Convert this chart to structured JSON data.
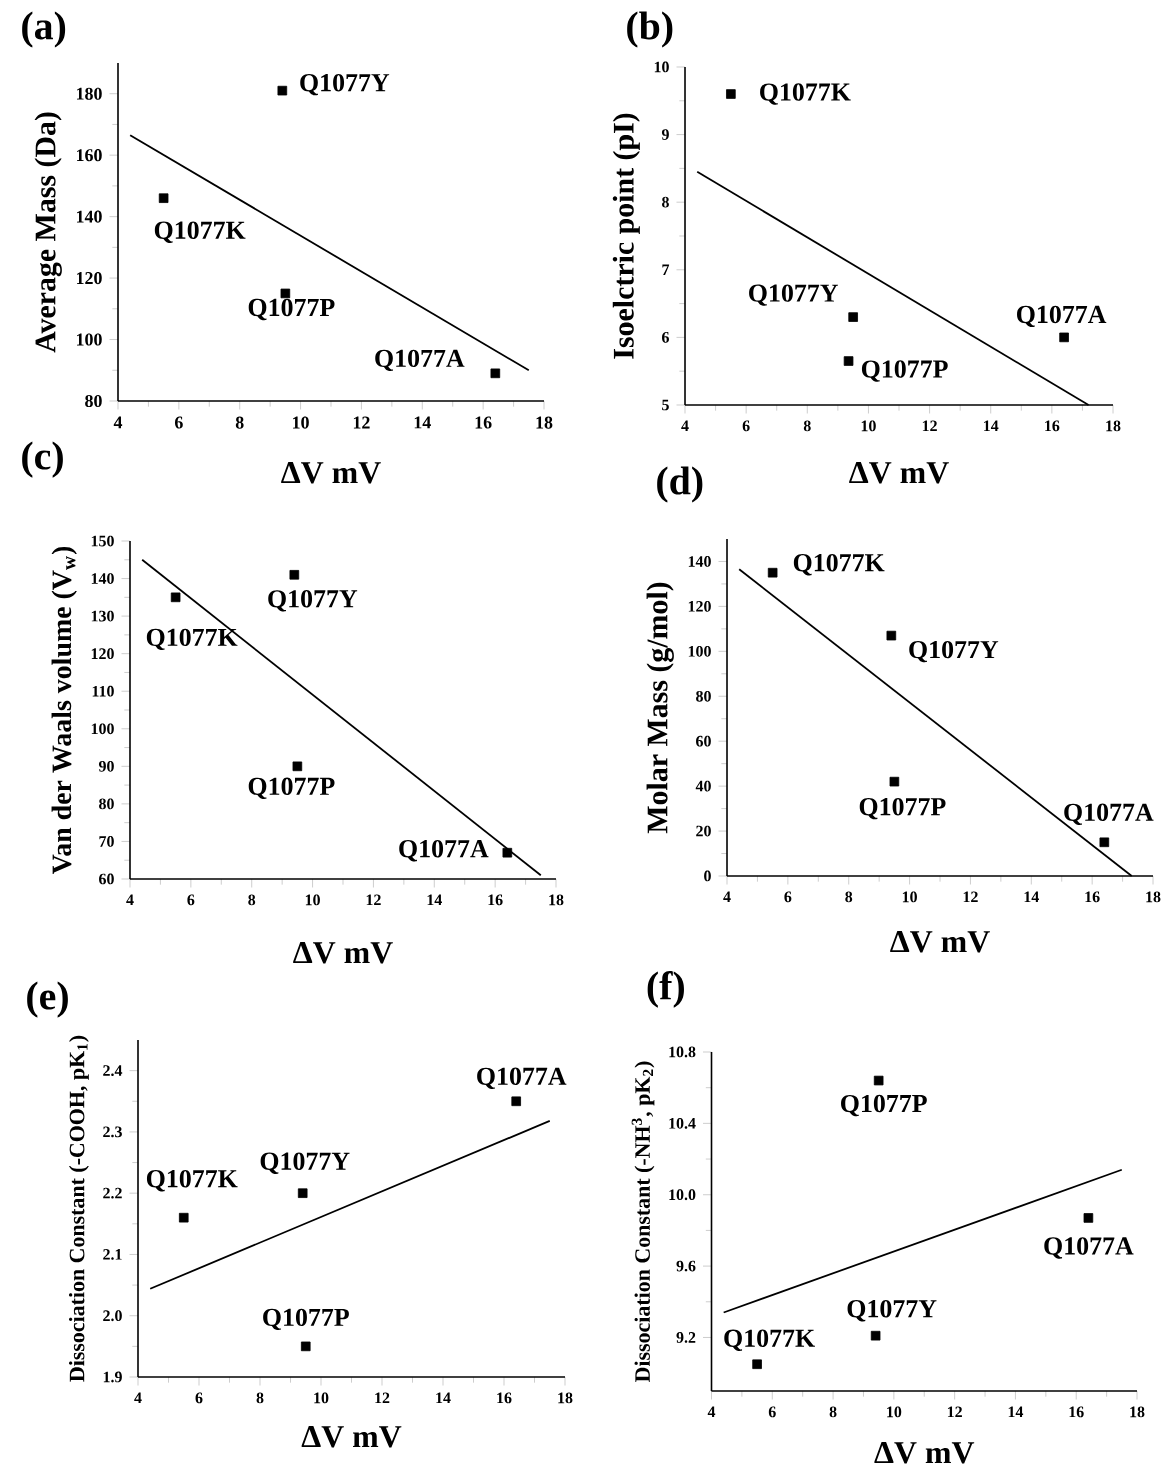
{
  "chart_data": [
    {
      "type": "scatter",
      "title": "(a)",
      "xlabel": "ΔV mV",
      "ylabel": "Average Mass (Da)",
      "xlim": [
        4,
        18
      ],
      "xticks": [
        4,
        6,
        8,
        10,
        12,
        14,
        16,
        18
      ],
      "ylim": [
        80,
        190
      ],
      "yticks": [
        80,
        100,
        120,
        140,
        160,
        180
      ],
      "series": [
        {
          "marker": "square",
          "color": "#000000",
          "x": [
            5.5,
            9.4,
            9.5,
            16.4
          ],
          "values": [
            146,
            181,
            115,
            89
          ]
        },
        {
          "type": "line",
          "color": "#000000",
          "x": [
            4.4,
            17.5
          ],
          "values": [
            166.5,
            90
          ]
        }
      ],
      "annotations": [
        {
          "text": "Q1077K",
          "x": 5.5,
          "y": 146
        },
        {
          "text": "Q1077Y",
          "x": 9.4,
          "y": 181
        },
        {
          "text": "Q1077P",
          "x": 9.5,
          "y": 115
        },
        {
          "text": "Q1077A",
          "x": 16.4,
          "y": 89
        }
      ]
    },
    {
      "type": "scatter",
      "title": "(b)",
      "xlabel": "ΔV mV",
      "ylabel": "Isoelctric point (pI)",
      "xlim": [
        4,
        18
      ],
      "xticks": [
        4,
        6,
        8,
        10,
        12,
        14,
        16,
        18
      ],
      "ylim": [
        5,
        10
      ],
      "yticks": [
        5,
        6,
        7,
        8,
        9,
        10
      ],
      "series": [
        {
          "marker": "square",
          "color": "#000000",
          "x": [
            5.5,
            9.5,
            9.35,
            16.4
          ],
          "values": [
            9.6,
            6.3,
            5.65,
            6.0
          ]
        },
        {
          "type": "line",
          "color": "#000000",
          "x": [
            4.4,
            17.2
          ],
          "values": [
            8.45,
            5.0
          ]
        }
      ],
      "annotations": [
        {
          "text": "Q1077K",
          "x": 5.5,
          "y": 9.6
        },
        {
          "text": "Q1077Y",
          "x": 9.5,
          "y": 6.3
        },
        {
          "text": "Q1077P",
          "x": 9.35,
          "y": 5.65
        },
        {
          "text": "Q1077A",
          "x": 16.4,
          "y": 6.0
        }
      ]
    },
    {
      "type": "scatter",
      "title": "(c)",
      "xlabel": "ΔV mV",
      "ylabel": "Van der Waals volume (V$_{w}$)",
      "xlim": [
        4,
        18
      ],
      "xticks": [
        4,
        6,
        8,
        10,
        12,
        14,
        16,
        18
      ],
      "ylim": [
        60,
        150
      ],
      "yticks": [
        60,
        70,
        80,
        90,
        100,
        110,
        120,
        130,
        140,
        150
      ],
      "series": [
        {
          "marker": "square",
          "color": "#000000",
          "x": [
            5.5,
            9.4,
            9.5,
            16.4
          ],
          "values": [
            135,
            141,
            90,
            67
          ]
        },
        {
          "type": "line",
          "color": "#000000",
          "x": [
            4.4,
            17.5
          ],
          "values": [
            145,
            61
          ]
        }
      ],
      "annotations": [
        {
          "text": "Q1077K",
          "x": 5.5,
          "y": 135
        },
        {
          "text": "Q1077Y",
          "x": 9.4,
          "y": 141
        },
        {
          "text": "Q1077P",
          "x": 9.5,
          "y": 90
        },
        {
          "text": "Q1077A",
          "x": 16.4,
          "y": 67
        }
      ]
    },
    {
      "type": "scatter",
      "title": "(d)",
      "xlabel": "ΔV mV",
      "ylabel": "Molar Mass (g/mol)",
      "xlim": [
        4,
        18
      ],
      "xticks": [
        4,
        6,
        8,
        10,
        12,
        14,
        16,
        18
      ],
      "ylim": [
        0,
        150
      ],
      "yticks": [
        0,
        20,
        40,
        60,
        80,
        100,
        120,
        140
      ],
      "series": [
        {
          "marker": "square",
          "color": "#000000",
          "x": [
            5.5,
            9.4,
            9.5,
            16.4
          ],
          "values": [
            135,
            107,
            42,
            15
          ]
        },
        {
          "type": "line",
          "color": "#000000",
          "x": [
            4.4,
            17.3
          ],
          "values": [
            136.5,
            0
          ]
        }
      ],
      "annotations": [
        {
          "text": "Q1077K",
          "x": 5.5,
          "y": 135
        },
        {
          "text": "Q1077Y",
          "x": 9.4,
          "y": 107
        },
        {
          "text": "Q1077P",
          "x": 9.5,
          "y": 42
        },
        {
          "text": "Q1077A",
          "x": 16.4,
          "y": 15
        }
      ]
    },
    {
      "type": "scatter",
      "title": "(e)",
      "xlabel": "ΔV mV",
      "ylabel": "Dissociation Constant (-COOH, pK$_{1}$)",
      "xlim": [
        4,
        18
      ],
      "xticks": [
        4,
        6,
        8,
        10,
        12,
        14,
        16,
        18
      ],
      "ylim": [
        1.9,
        2.45
      ],
      "yticks": [
        1.9,
        {
          "value": 2.0,
          "label": "2.0"
        },
        2.1,
        2.2,
        2.3,
        2.4
      ],
      "series": [
        {
          "marker": "square",
          "color": "#000000",
          "x": [
            5.5,
            9.4,
            9.5,
            16.4
          ],
          "values": [
            2.16,
            2.2,
            1.95,
            2.35
          ]
        },
        {
          "type": "line",
          "color": "#000000",
          "x": [
            4.4,
            17.5
          ],
          "values": [
            2.044,
            2.318
          ]
        }
      ],
      "annotations": [
        {
          "text": "Q1077K",
          "x": 5.5,
          "y": 2.16
        },
        {
          "text": "Q1077Y",
          "x": 9.4,
          "y": 2.2
        },
        {
          "text": "Q1077P",
          "x": 9.5,
          "y": 1.95
        },
        {
          "text": "Q1077A",
          "x": 16.4,
          "y": 2.35
        }
      ]
    },
    {
      "type": "scatter",
      "title": "(f)",
      "xlabel": "ΔV mV",
      "ylabel": "Dissociation Constant (-NH$^{3}$, pK$_{2}$)",
      "xlim": [
        4,
        18
      ],
      "xticks": [
        4,
        6,
        8,
        10,
        12,
        14,
        16,
        18
      ],
      "ylim": [
        8.9,
        10.8
      ],
      "yticks": [
        9.2,
        9.6,
        {
          "value": 10.0,
          "label": "10.0"
        },
        10.4,
        10.8
      ],
      "series": [
        {
          "marker": "square",
          "color": "#000000",
          "x": [
            5.5,
            9.4,
            9.5,
            16.4
          ],
          "values": [
            9.05,
            9.21,
            10.64,
            9.87
          ]
        },
        {
          "type": "line",
          "color": "#000000",
          "x": [
            4.4,
            17.5
          ],
          "values": [
            9.34,
            10.14
          ]
        }
      ],
      "annotations": [
        {
          "text": "Q1077K",
          "x": 5.5,
          "y": 9.05
        },
        {
          "text": "Q1077Y",
          "x": 9.4,
          "y": 9.21
        },
        {
          "text": "Q1077P",
          "x": 9.5,
          "y": 10.64
        },
        {
          "text": "Q1077A",
          "x": 16.4,
          "y": 9.87
        }
      ]
    }
  ]
}
